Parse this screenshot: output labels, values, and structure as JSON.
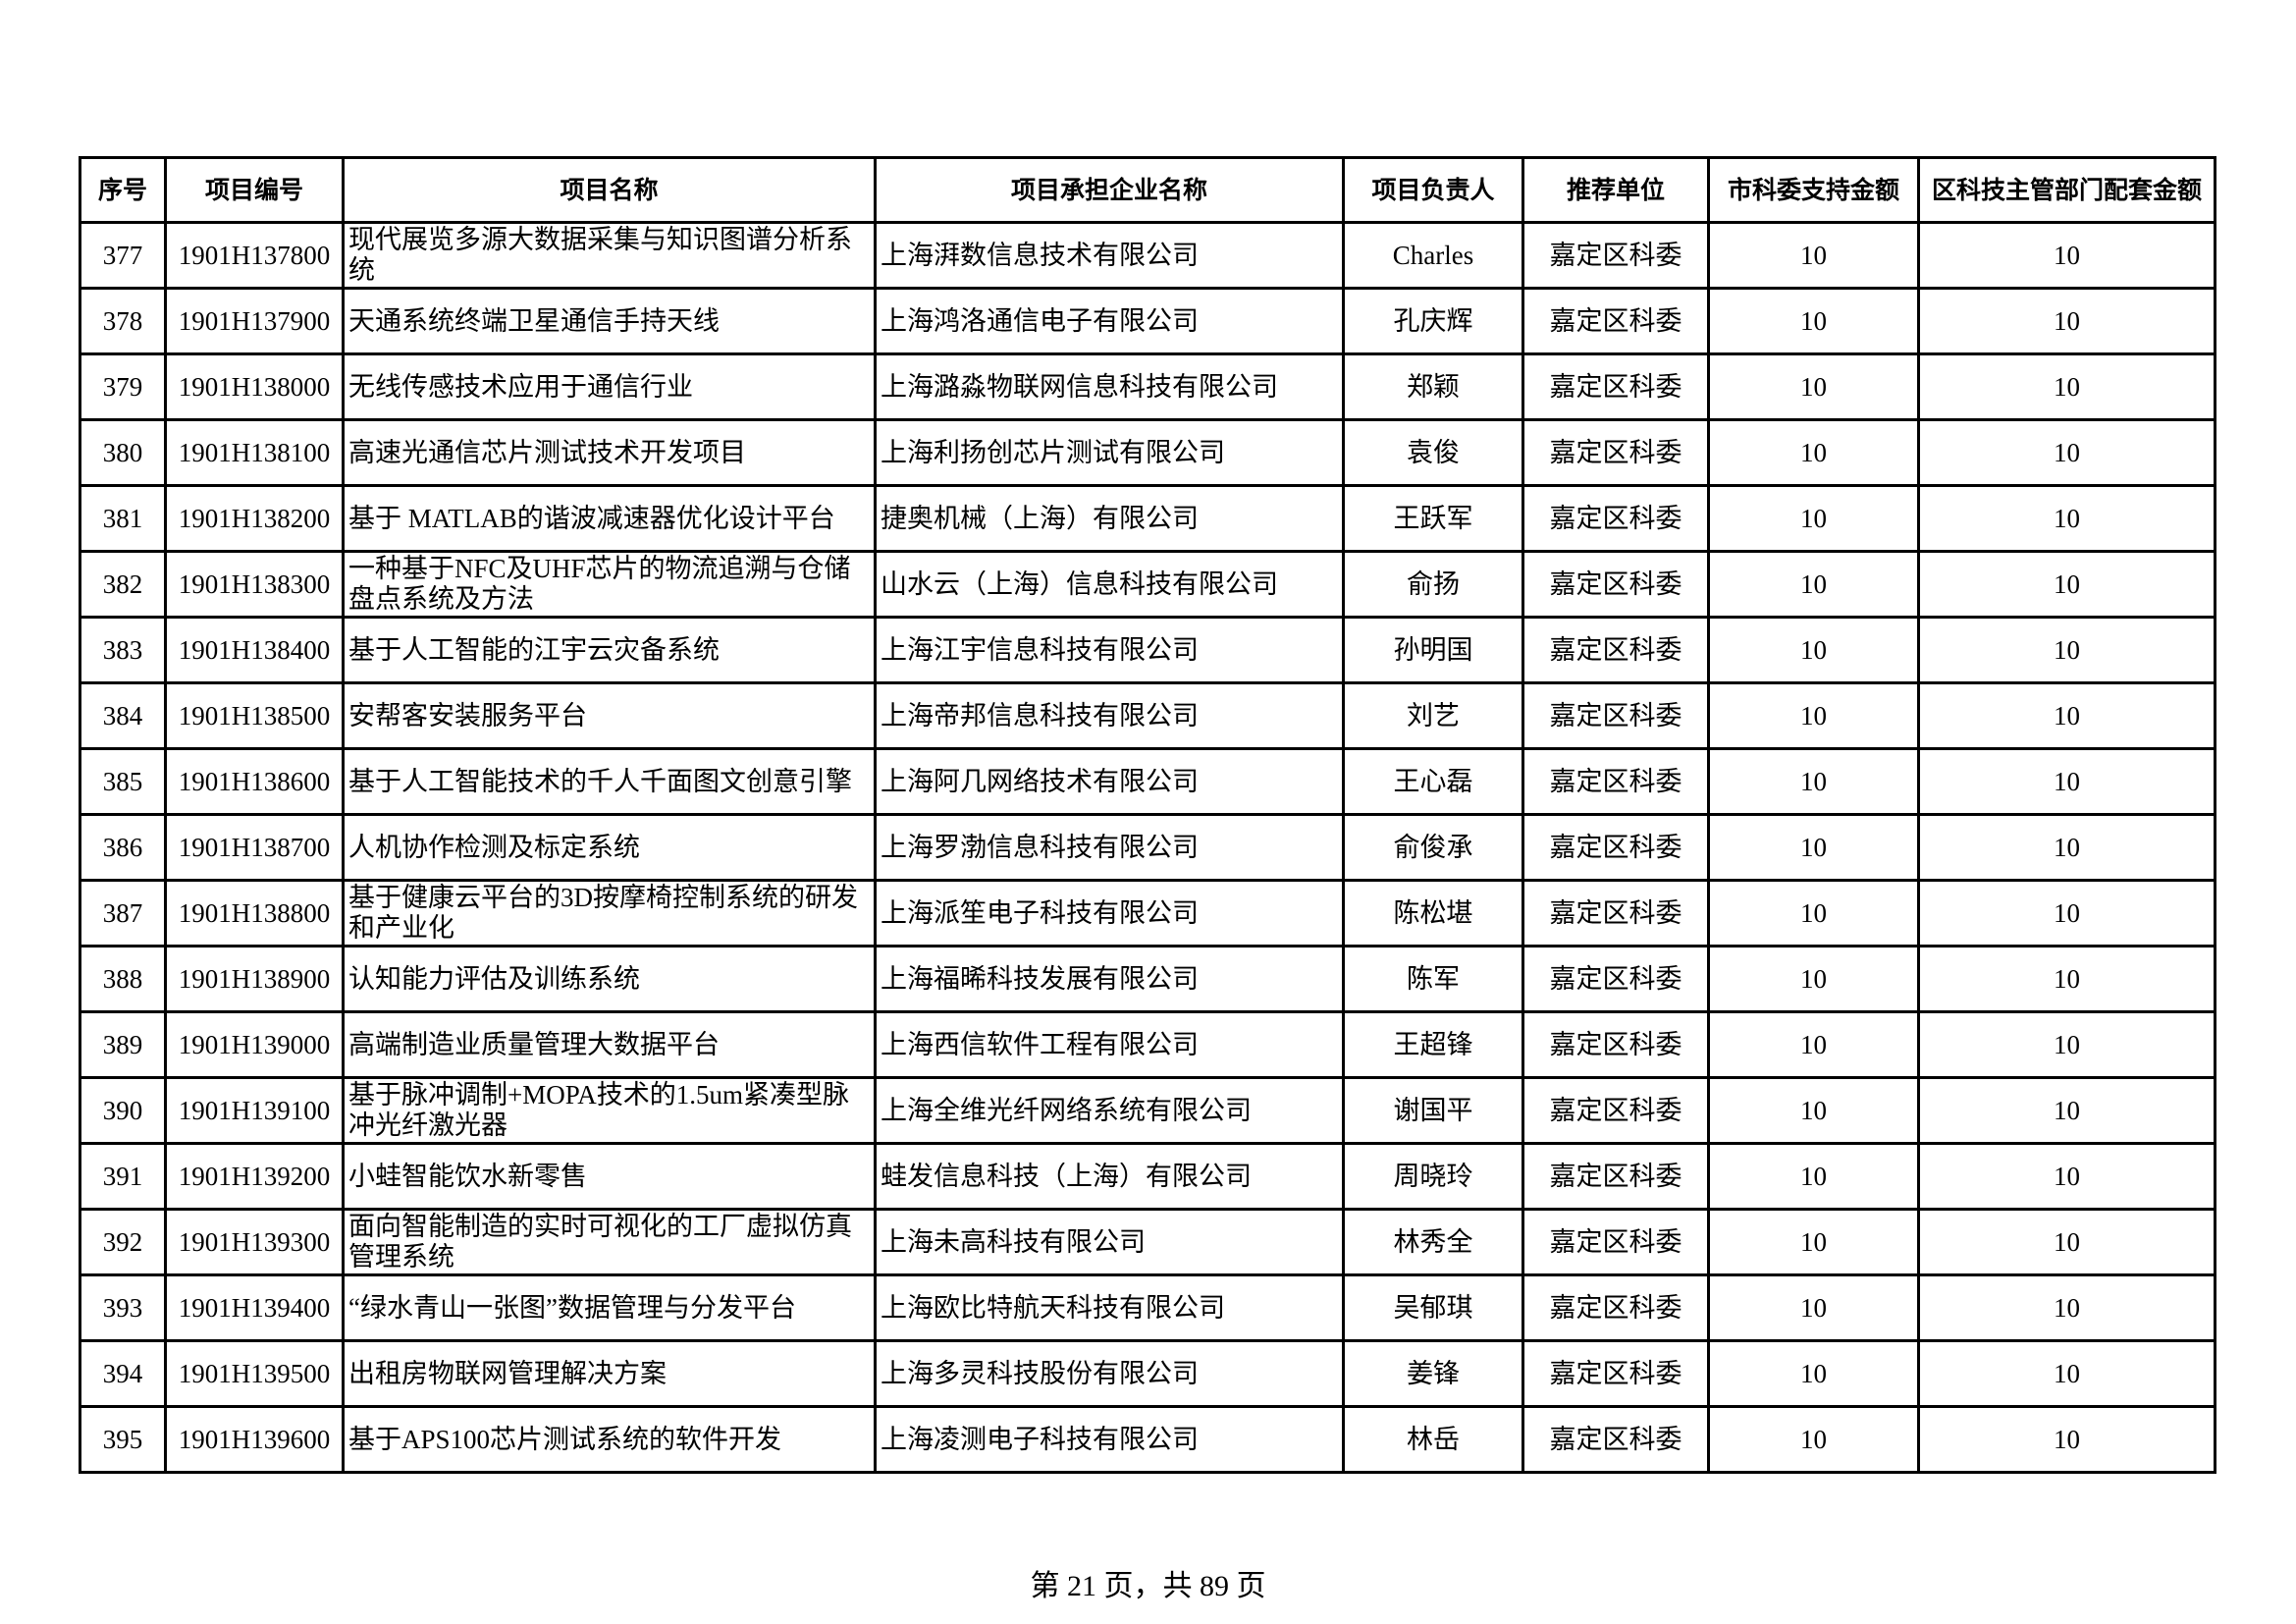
{
  "table": {
    "headers": [
      "序号",
      "项目编号",
      "项目名称",
      "项目承担企业名称",
      "项目负责人",
      "推荐单位",
      "市科委支持金额",
      "区科技主管部门配套金额"
    ],
    "rows": [
      [
        "377",
        "1901H137800",
        "现代展览多源大数据采集与知识图谱分析系统",
        "上海湃数信息技术有限公司",
        "Charles",
        "嘉定区科委",
        "10",
        "10"
      ],
      [
        "378",
        "1901H137900",
        "天通系统终端卫星通信手持天线",
        "上海鸿洛通信电子有限公司",
        "孔庆辉",
        "嘉定区科委",
        "10",
        "10"
      ],
      [
        "379",
        "1901H138000",
        "无线传感技术应用于通信行业",
        "上海潞淼物联网信息科技有限公司",
        "郑颖",
        "嘉定区科委",
        "10",
        "10"
      ],
      [
        "380",
        "1901H138100",
        "高速光通信芯片测试技术开发项目",
        "上海利扬创芯片测试有限公司",
        "袁俊",
        "嘉定区科委",
        "10",
        "10"
      ],
      [
        "381",
        "1901H138200",
        "基于 MATLAB的谐波减速器优化设计平台",
        "捷奥机械（上海）有限公司",
        "王跃军",
        "嘉定区科委",
        "10",
        "10"
      ],
      [
        "382",
        "1901H138300",
        "一种基于NFC及UHF芯片的物流追溯与仓储盘点系统及方法",
        "山水云（上海）信息科技有限公司",
        "俞扬",
        "嘉定区科委",
        "10",
        "10"
      ],
      [
        "383",
        "1901H138400",
        "基于人工智能的江宇云灾备系统",
        "上海江宇信息科技有限公司",
        "孙明国",
        "嘉定区科委",
        "10",
        "10"
      ],
      [
        "384",
        "1901H138500",
        "安帮客安装服务平台",
        "上海帝邦信息科技有限公司",
        "刘艺",
        "嘉定区科委",
        "10",
        "10"
      ],
      [
        "385",
        "1901H138600",
        "基于人工智能技术的千人千面图文创意引擎",
        "上海阿几网络技术有限公司",
        "王心磊",
        "嘉定区科委",
        "10",
        "10"
      ],
      [
        "386",
        "1901H138700",
        "人机协作检测及标定系统",
        "上海罗渤信息科技有限公司",
        "俞俊承",
        "嘉定区科委",
        "10",
        "10"
      ],
      [
        "387",
        "1901H138800",
        "基于健康云平台的3D按摩椅控制系统的研发和产业化",
        "上海派笙电子科技有限公司",
        "陈松堪",
        "嘉定区科委",
        "10",
        "10"
      ],
      [
        "388",
        "1901H138900",
        "认知能力评估及训练系统",
        "上海福晞科技发展有限公司",
        "陈军",
        "嘉定区科委",
        "10",
        "10"
      ],
      [
        "389",
        "1901H139000",
        "高端制造业质量管理大数据平台",
        "上海西信软件工程有限公司",
        "王超锋",
        "嘉定区科委",
        "10",
        "10"
      ],
      [
        "390",
        "1901H139100",
        "基于脉冲调制+MOPA技术的1.5um紧凑型脉冲光纤激光器",
        "上海全维光纤网络系统有限公司",
        "谢国平",
        "嘉定区科委",
        "10",
        "10"
      ],
      [
        "391",
        "1901H139200",
        "小蛙智能饮水新零售",
        "蛙发信息科技（上海）有限公司",
        "周晓玲",
        "嘉定区科委",
        "10",
        "10"
      ],
      [
        "392",
        "1901H139300",
        "面向智能制造的实时可视化的工厂虚拟仿真管理系统",
        "上海未高科技有限公司",
        "林秀全",
        "嘉定区科委",
        "10",
        "10"
      ],
      [
        "393",
        "1901H139400",
        "“绿水青山一张图”数据管理与分发平台",
        "上海欧比特航天科技有限公司",
        "吴郁琪",
        "嘉定区科委",
        "10",
        "10"
      ],
      [
        "394",
        "1901H139500",
        "出租房物联网管理解决方案",
        "上海多灵科技股份有限公司",
        "姜锋",
        "嘉定区科委",
        "10",
        "10"
      ],
      [
        "395",
        "1901H139600",
        "基于APS100芯片测试系统的软件开发",
        "上海凌测电子科技有限公司",
        "林岳",
        "嘉定区科委",
        "10",
        "10"
      ]
    ]
  },
  "footer": {
    "page_label": "第 21 页，共 89 页"
  }
}
